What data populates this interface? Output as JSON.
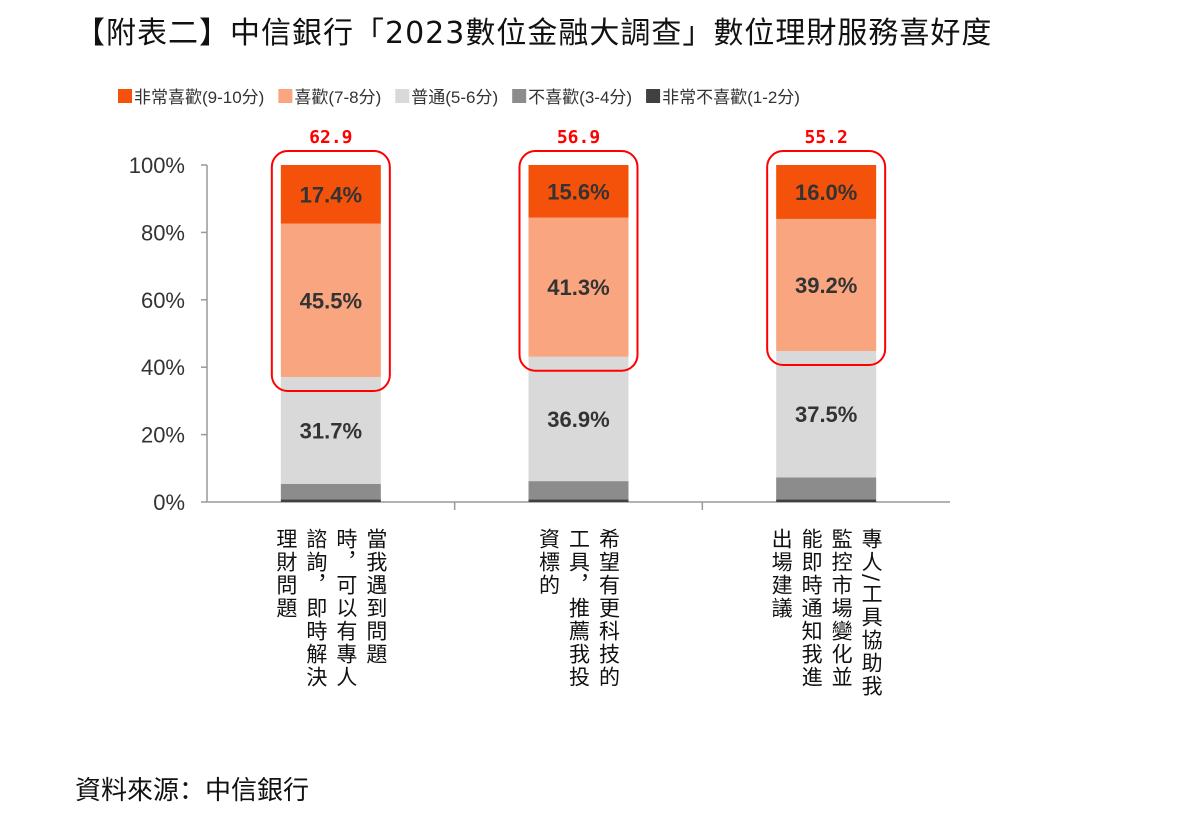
{
  "chart_data": {
    "type": "bar",
    "stacked": true,
    "title": "【附表二】中信銀行「2023數位金融大調查」數位理財服務喜好度",
    "categories": [
      {
        "label": "當我遇到問題時，可以有專人諮詢，即時解決理財問題",
        "lines": [
          "當我遇到問題",
          "時，可以有專人",
          "諮詢，即時解決",
          "理財問題"
        ]
      },
      {
        "label": "希望有更科技的工具，推薦我投資標的",
        "lines": [
          "希望有更科技的",
          "工具，推薦我投",
          "資標的"
        ]
      },
      {
        "label": "專人/工具協助我監控市場變化並能即時通知我進出場建議",
        "lines": [
          "專人/工具協助我",
          "監控市場變化並",
          "能即時通知我進",
          "出場建議"
        ]
      }
    ],
    "series": [
      {
        "name": "非常不喜歡(1-2分)",
        "color": "#404040",
        "values": [
          0.8,
          0.8,
          0.8
        ],
        "labels": [
          "",
          "",
          ""
        ]
      },
      {
        "name": "不喜歡(3-4分)",
        "color": "#8c8c8c",
        "values": [
          4.6,
          5.4,
          6.5
        ],
        "labels": [
          "",
          "",
          ""
        ]
      },
      {
        "name": "普通(5-6分)",
        "color": "#d9d9d9",
        "values": [
          31.7,
          36.9,
          37.5
        ],
        "labels": [
          "31.7%",
          "36.9%",
          "37.5%"
        ]
      },
      {
        "name": "喜歡(7-8分)",
        "color": "#f9a57f",
        "values": [
          45.5,
          41.3,
          39.2
        ],
        "labels": [
          "45.5%",
          "41.3%",
          "39.2%"
        ]
      },
      {
        "name": "非常喜歡(9-10分)",
        "color": "#f4510b",
        "values": [
          17.4,
          15.6,
          16.0
        ],
        "labels": [
          "17.4%",
          "15.6%",
          "16.0%"
        ]
      }
    ],
    "legend_order": [
      "非常喜歡(9-10分)",
      "喜歡(7-8分)",
      "普通(5-6分)",
      "不喜歡(3-4分)",
      "非常不喜歡(1-2分)"
    ],
    "highlight_totals": [
      "62.9",
      "56.9",
      "55.2"
    ],
    "highlight_color": "#ff0000",
    "yticks": [
      "0%",
      "20%",
      "40%",
      "60%",
      "80%",
      "100%"
    ],
    "ylim": [
      0,
      100
    ],
    "legend_position": "top"
  },
  "source": "資料來源：中信銀行"
}
